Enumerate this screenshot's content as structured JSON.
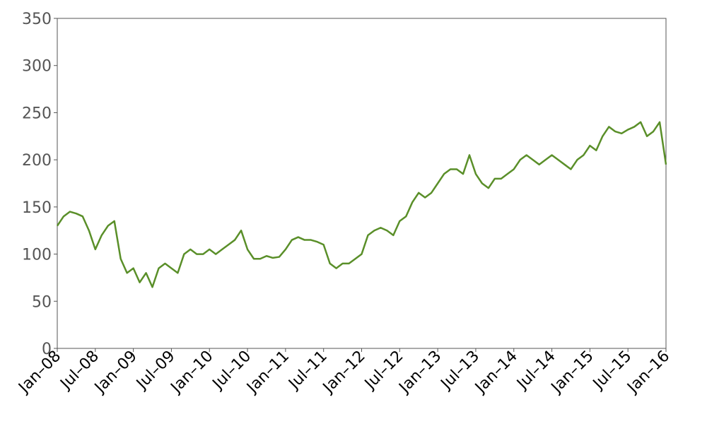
{
  "chart_data": {
    "type": "line",
    "x": [
      "2008-01",
      "2008-02",
      "2008-03",
      "2008-04",
      "2008-05",
      "2008-06",
      "2008-07",
      "2008-08",
      "2008-09",
      "2008-10",
      "2008-11",
      "2008-12",
      "2009-01",
      "2009-02",
      "2009-03",
      "2009-04",
      "2009-05",
      "2009-06",
      "2009-07",
      "2009-08",
      "2009-09",
      "2009-10",
      "2009-11",
      "2009-12",
      "2010-01",
      "2010-02",
      "2010-03",
      "2010-04",
      "2010-05",
      "2010-06",
      "2010-07",
      "2010-08",
      "2010-09",
      "2010-10",
      "2010-11",
      "2010-12",
      "2011-01",
      "2011-02",
      "2011-03",
      "2011-04",
      "2011-05",
      "2011-06",
      "2011-07",
      "2011-08",
      "2011-09",
      "2011-10",
      "2011-11",
      "2011-12",
      "2012-01",
      "2012-02",
      "2012-03",
      "2012-04",
      "2012-05",
      "2012-06",
      "2012-07",
      "2012-08",
      "2012-09",
      "2012-10",
      "2012-11",
      "2012-12",
      "2013-01",
      "2013-02",
      "2013-03",
      "2013-04",
      "2013-05",
      "2013-06",
      "2013-07",
      "2013-08",
      "2013-09",
      "2013-10",
      "2013-11",
      "2013-12",
      "2014-01",
      "2014-02",
      "2014-03",
      "2014-04",
      "2014-05",
      "2014-06",
      "2014-07",
      "2014-08",
      "2014-09",
      "2014-10",
      "2014-11",
      "2014-12",
      "2015-01",
      "2015-02",
      "2015-03",
      "2015-04",
      "2015-05",
      "2015-06",
      "2015-07",
      "2015-08",
      "2015-09",
      "2015-10",
      "2015-11",
      "2015-12",
      "2016-01"
    ],
    "series": [
      {
        "color": "#5a8f29",
        "values": [
          130,
          140,
          145,
          143,
          140,
          125,
          105,
          120,
          130,
          135,
          95,
          80,
          85,
          70,
          80,
          65,
          85,
          90,
          85,
          80,
          100,
          105,
          100,
          100,
          105,
          100,
          105,
          110,
          115,
          125,
          105,
          95,
          95,
          98,
          96,
          97,
          105,
          115,
          118,
          115,
          115,
          113,
          110,
          90,
          85,
          90,
          90,
          95,
          100,
          120,
          125,
          128,
          125,
          120,
          135,
          140,
          155,
          165,
          160,
          165,
          175,
          185,
          190,
          190,
          185,
          205,
          185,
          175,
          170,
          180,
          180,
          185,
          190,
          200,
          205,
          200,
          195,
          200,
          205,
          200,
          195,
          190,
          200,
          205,
          215,
          210,
          225,
          235,
          230,
          228,
          232,
          235,
          240,
          225,
          230,
          240,
          195
        ]
      }
    ],
    "xlim": [
      "2008-01",
      "2016-01"
    ],
    "xticks": [
      {
        "value": "2008-01",
        "label": "Jan–08"
      },
      {
        "value": "2008-07",
        "label": "Jul–08"
      },
      {
        "value": "2009-01",
        "label": "Jan–09"
      },
      {
        "value": "2009-07",
        "label": "Jul–09"
      },
      {
        "value": "2010-01",
        "label": "Jan–10"
      },
      {
        "value": "2010-07",
        "label": "Jul–10"
      },
      {
        "value": "2011-01",
        "label": "Jan–11"
      },
      {
        "value": "2011-07",
        "label": "Jul–11"
      },
      {
        "value": "2012-01",
        "label": "Jan–12"
      },
      {
        "value": "2012-07",
        "label": "Jul–12"
      },
      {
        "value": "2013-01",
        "label": "Jan–13"
      },
      {
        "value": "2013-07",
        "label": "Jul–13"
      },
      {
        "value": "2014-01",
        "label": "Jan–14"
      },
      {
        "value": "2014-07",
        "label": "Jul–14"
      },
      {
        "value": "2015-01",
        "label": "Jan–15"
      },
      {
        "value": "2015-07",
        "label": "Jul–15"
      },
      {
        "value": "2016-01",
        "label": "Jan–16"
      }
    ],
    "ylim": [
      0,
      350
    ],
    "yticks": [
      0,
      50,
      100,
      150,
      200,
      250,
      300,
      350
    ],
    "grid": false
  }
}
